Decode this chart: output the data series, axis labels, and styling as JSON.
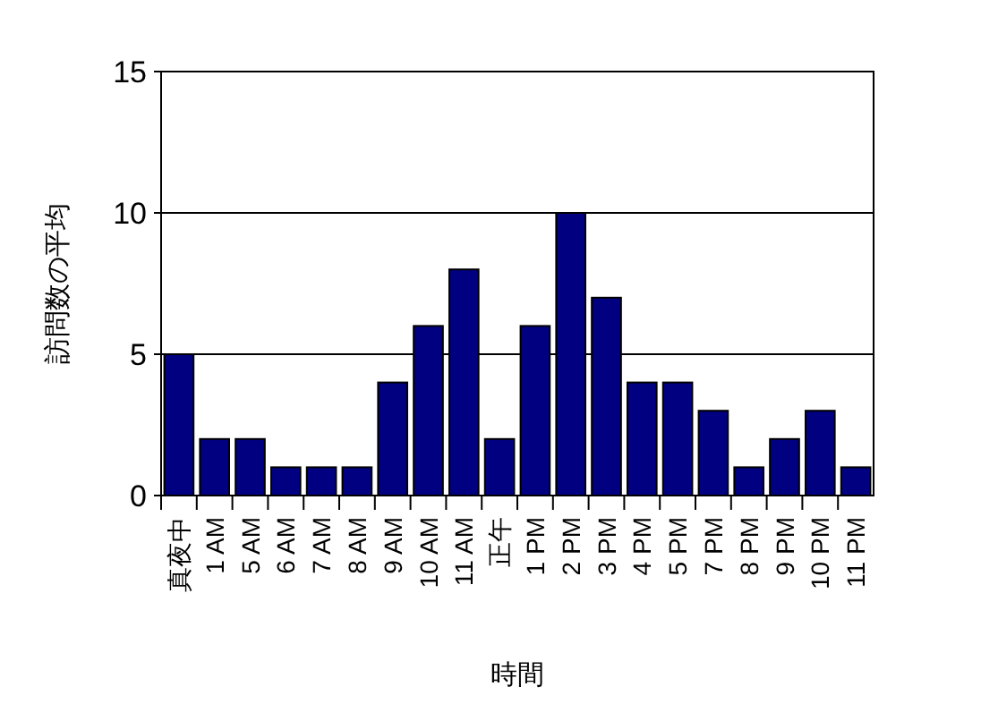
{
  "chart_data": {
    "type": "bar",
    "categories": [
      "真夜中",
      "1 AM",
      "5 AM",
      "6 AM",
      "7 AM",
      "8 AM",
      "9 AM",
      "10 AM",
      "11 AM",
      "正午",
      "1 PM",
      "2 PM",
      "3 PM",
      "4 PM",
      "5 PM",
      "7 PM",
      "8 PM",
      "9 PM",
      "10 PM",
      "11 PM"
    ],
    "values": [
      5,
      2,
      2,
      1,
      1,
      1,
      4,
      6,
      8,
      2,
      6,
      10,
      7,
      4,
      4,
      3,
      1,
      2,
      3,
      1
    ],
    "color": "#000080",
    "xlabel": "時間",
    "ylabel": "訪問数の平均",
    "ylim": [
      0,
      15
    ],
    "yticks": [
      0,
      5,
      10,
      15
    ],
    "grid": "y"
  }
}
